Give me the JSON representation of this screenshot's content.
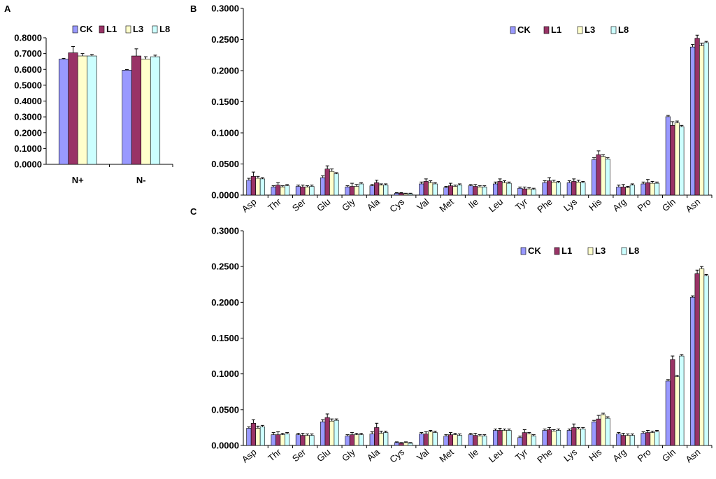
{
  "chart_data": [
    {
      "panel": "A",
      "type": "bar",
      "categories": [
        "N+",
        "N-"
      ],
      "series": [
        {
          "name": "CK",
          "values": [
            0.665,
            0.595
          ],
          "errors": [
            0.005,
            0.004
          ]
        },
        {
          "name": "L1",
          "values": [
            0.705,
            0.685
          ],
          "errors": [
            0.04,
            0.045
          ]
        },
        {
          "name": "L3",
          "values": [
            0.685,
            0.665
          ],
          "errors": [
            0.015,
            0.015
          ]
        },
        {
          "name": "L8",
          "values": [
            0.685,
            0.68
          ],
          "errors": [
            0.01,
            0.01
          ]
        }
      ],
      "ylim": [
        0,
        0.8
      ],
      "yticks": [
        "0.0000",
        "0.1000",
        "0.2000",
        "0.3000",
        "0.4000",
        "0.5000",
        "0.6000",
        "0.7000",
        "0.8000"
      ],
      "legend": "top"
    },
    {
      "panel": "B",
      "type": "bar",
      "categories": [
        "Asp",
        "Thr",
        "Ser",
        "Glu",
        "Gly",
        "Ala",
        "Cys",
        "Val",
        "Met",
        "Ile",
        "Leu",
        "Tyr",
        "Phe",
        "Lys",
        "His",
        "Arg",
        "Pro",
        "Gln",
        "Asn"
      ],
      "series": [
        {
          "name": "CK",
          "values": [
            0.024,
            0.013,
            0.014,
            0.028,
            0.013,
            0.015,
            0.003,
            0.018,
            0.012,
            0.015,
            0.018,
            0.011,
            0.02,
            0.02,
            0.057,
            0.013,
            0.018,
            0.126,
            0.238
          ],
          "errors": [
            0.003,
            0.002,
            0.002,
            0.003,
            0.002,
            0.002,
            0.001,
            0.003,
            0.002,
            0.002,
            0.003,
            0.002,
            0.003,
            0.003,
            0.003,
            0.003,
            0.003,
            0.002,
            0.004
          ]
        },
        {
          "name": "L1",
          "values": [
            0.03,
            0.016,
            0.013,
            0.042,
            0.014,
            0.02,
            0.003,
            0.022,
            0.015,
            0.014,
            0.022,
            0.01,
            0.023,
            0.022,
            0.065,
            0.013,
            0.02,
            0.112,
            0.252
          ],
          "errors": [
            0.007,
            0.004,
            0.003,
            0.005,
            0.005,
            0.004,
            0.001,
            0.004,
            0.004,
            0.003,
            0.004,
            0.003,
            0.005,
            0.004,
            0.006,
            0.004,
            0.005,
            0.006,
            0.005
          ]
        },
        {
          "name": "L3",
          "values": [
            0.027,
            0.013,
            0.013,
            0.038,
            0.014,
            0.016,
            0.002,
            0.02,
            0.014,
            0.013,
            0.02,
            0.01,
            0.021,
            0.021,
            0.062,
            0.012,
            0.019,
            0.116,
            0.24
          ],
          "errors": [
            0.003,
            0.002,
            0.002,
            0.004,
            0.003,
            0.002,
            0.001,
            0.003,
            0.002,
            0.002,
            0.003,
            0.002,
            0.003,
            0.003,
            0.003,
            0.002,
            0.003,
            0.003,
            0.004
          ]
        },
        {
          "name": "L8",
          "values": [
            0.026,
            0.015,
            0.014,
            0.034,
            0.018,
            0.016,
            0.002,
            0.018,
            0.016,
            0.013,
            0.019,
            0.009,
            0.02,
            0.02,
            0.058,
            0.016,
            0.019,
            0.11,
            0.245
          ],
          "errors": [
            0.002,
            0.002,
            0.002,
            0.002,
            0.002,
            0.002,
            0.001,
            0.002,
            0.002,
            0.002,
            0.002,
            0.002,
            0.002,
            0.002,
            0.002,
            0.002,
            0.002,
            0.002,
            0.002
          ]
        }
      ],
      "ylim": [
        0,
        0.3
      ],
      "yticks": [
        "0.0000",
        "0.0500",
        "0.1000",
        "0.1500",
        "0.2000",
        "0.2500",
        "0.3000"
      ],
      "legend": "top-right"
    },
    {
      "panel": "C",
      "type": "bar",
      "categories": [
        "Asp",
        "Thr",
        "Ser",
        "Glu",
        "Gly",
        "Ala",
        "Cys",
        "Val",
        "Met",
        "Ile",
        "Leu",
        "Tyr",
        "Phe",
        "Lys",
        "His",
        "Arg",
        "Pro",
        "Gln",
        "Asn"
      ],
      "series": [
        {
          "name": "CK",
          "values": [
            0.024,
            0.015,
            0.015,
            0.033,
            0.013,
            0.016,
            0.004,
            0.016,
            0.013,
            0.015,
            0.021,
            0.011,
            0.021,
            0.021,
            0.033,
            0.016,
            0.017,
            0.09,
            0.207
          ],
          "errors": [
            0.002,
            0.003,
            0.002,
            0.003,
            0.002,
            0.003,
            0.001,
            0.002,
            0.002,
            0.002,
            0.002,
            0.002,
            0.002,
            0.002,
            0.002,
            0.002,
            0.002,
            0.002,
            0.002
          ]
        },
        {
          "name": "L1",
          "values": [
            0.031,
            0.015,
            0.014,
            0.039,
            0.015,
            0.025,
            0.003,
            0.016,
            0.015,
            0.014,
            0.021,
            0.018,
            0.022,
            0.025,
            0.037,
            0.014,
            0.018,
            0.12,
            0.24
          ],
          "errors": [
            0.005,
            0.004,
            0.003,
            0.005,
            0.003,
            0.006,
            0.001,
            0.003,
            0.003,
            0.003,
            0.003,
            0.004,
            0.003,
            0.005,
            0.005,
            0.003,
            0.003,
            0.005,
            0.005
          ]
        },
        {
          "name": "L3",
          "values": [
            0.024,
            0.015,
            0.014,
            0.034,
            0.015,
            0.017,
            0.004,
            0.019,
            0.015,
            0.013,
            0.021,
            0.016,
            0.02,
            0.023,
            0.043,
            0.014,
            0.018,
            0.096,
            0.247
          ],
          "errors": [
            0.003,
            0.002,
            0.002,
            0.003,
            0.002,
            0.003,
            0.001,
            0.002,
            0.002,
            0.002,
            0.002,
            0.002,
            0.002,
            0.002,
            0.002,
            0.002,
            0.002,
            0.002,
            0.003
          ]
        },
        {
          "name": "L8",
          "values": [
            0.026,
            0.016,
            0.014,
            0.035,
            0.015,
            0.018,
            0.003,
            0.018,
            0.014,
            0.013,
            0.021,
            0.013,
            0.021,
            0.023,
            0.038,
            0.014,
            0.019,
            0.125,
            0.237
          ],
          "errors": [
            0.002,
            0.002,
            0.002,
            0.002,
            0.002,
            0.002,
            0.001,
            0.002,
            0.002,
            0.002,
            0.002,
            0.002,
            0.002,
            0.002,
            0.002,
            0.002,
            0.002,
            0.002,
            0.002
          ]
        }
      ],
      "ylim": [
        0,
        0.3
      ],
      "yticks": [
        "0.0000",
        "0.0500",
        "0.1000",
        "0.1500",
        "0.2000",
        "0.2500",
        "0.3000"
      ],
      "legend": "top-right"
    }
  ],
  "colors": {
    "CK": "#9999ff",
    "L1": "#993366",
    "L3": "#ffffcc",
    "L8": "#ccffff",
    "axis": "#000000"
  }
}
